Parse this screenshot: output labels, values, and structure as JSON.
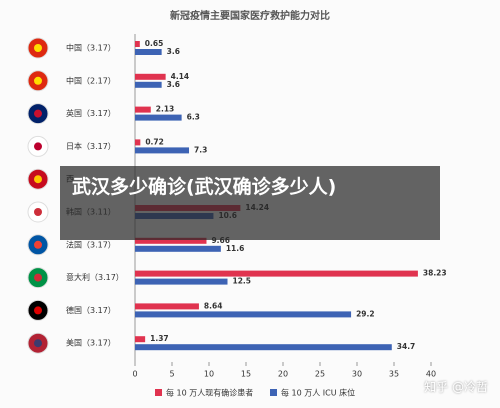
{
  "chart_data": {
    "type": "hbar",
    "title": "新冠疫情主要国家医疗救护能力对比",
    "categories": [
      "中国（3.17）",
      "中国（2.17）",
      "英国（3.17）",
      "日本（3.17）",
      "西",
      "韩国（3.11）",
      "法国（3.17）",
      "意大利（3.17）",
      "德国（3.17）",
      "美国（3.17）"
    ],
    "series": [
      {
        "name": "每 10 万人现有确诊患者",
        "color": "#e0334f",
        "values": [
          0.65,
          4.14,
          2.13,
          0.72,
          null,
          14.24,
          9.66,
          38.23,
          8.64,
          1.37
        ]
      },
      {
        "name": "每 10 万人 ICU 床位",
        "color": "#3d63b4",
        "values": [
          3.6,
          3.6,
          6.3,
          7.3,
          null,
          10.6,
          11.6,
          12.5,
          29.2,
          34.7
        ]
      }
    ],
    "xlim": [
      0,
      40
    ],
    "xticks": [
      0,
      5,
      10,
      15,
      20,
      25,
      30,
      35,
      40
    ]
  },
  "overlay": "武汉多少确诊(武汉确诊多少人)",
  "watermark": "知乎 @冷哲"
}
